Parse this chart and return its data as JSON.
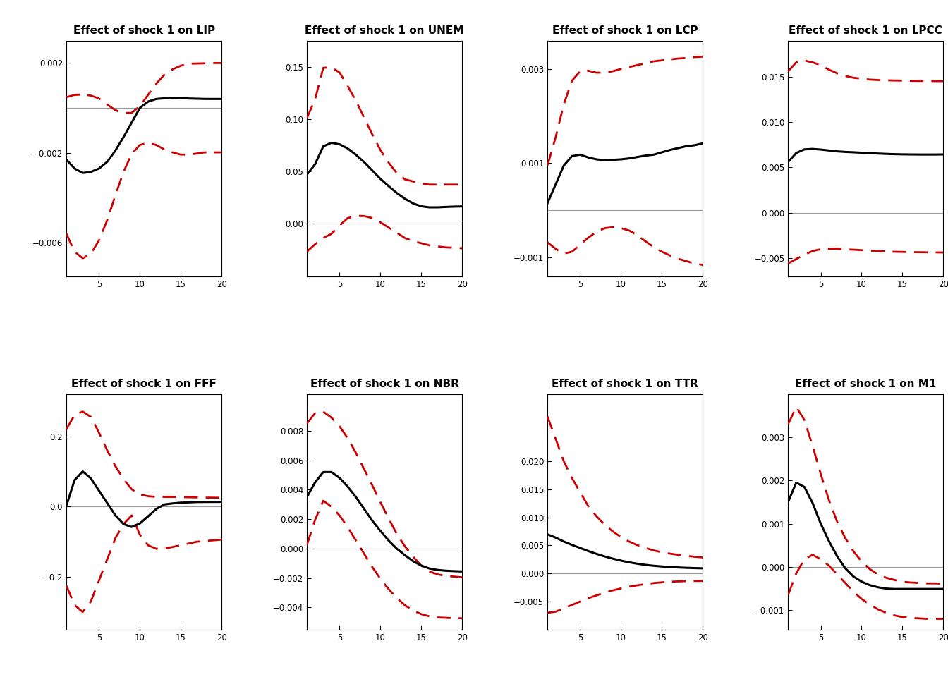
{
  "titles": [
    "Effect of shock 1 on LIP",
    "Effect of shock 1 on UNEM",
    "Effect of shock 1 on LCP",
    "Effect of shock 1 on LPCC",
    "Effect of shock 1 on FFF",
    "Effect of shock 1 on NBR",
    "Effect of shock 1 on TTR",
    "Effect of shock 1 on M1"
  ],
  "x": [
    1,
    2,
    3,
    4,
    5,
    6,
    7,
    8,
    9,
    10,
    11,
    12,
    13,
    14,
    15,
    16,
    17,
    18,
    19,
    20
  ],
  "median": {
    "LIP": [
      -0.0023,
      -0.0027,
      -0.0029,
      -0.00285,
      -0.0027,
      -0.0024,
      -0.0019,
      -0.0013,
      -0.00065,
      0.0,
      0.00028,
      0.0004,
      0.00043,
      0.00045,
      0.00044,
      0.00042,
      0.00041,
      0.0004,
      0.0004,
      0.0004
    ],
    "UNEM": [
      0.047,
      0.057,
      0.074,
      0.0775,
      0.076,
      0.072,
      0.066,
      0.059,
      0.051,
      0.043,
      0.036,
      0.0295,
      0.024,
      0.0195,
      0.0168,
      0.0158,
      0.0158,
      0.0162,
      0.0165,
      0.0167
    ],
    "LCP": [
      0.00015,
      0.00055,
      0.00095,
      0.00115,
      0.00118,
      0.00112,
      0.00108,
      0.00106,
      0.00107,
      0.00108,
      0.0011,
      0.00113,
      0.00116,
      0.00118,
      0.00123,
      0.00128,
      0.00132,
      0.00136,
      0.00138,
      0.00142
    ],
    "LPCC": [
      0.0056,
      0.0066,
      0.007,
      0.00705,
      0.00698,
      0.00688,
      0.00678,
      0.00672,
      0.00668,
      0.00663,
      0.00658,
      0.00654,
      0.0065,
      0.00647,
      0.00645,
      0.00644,
      0.00643,
      0.00643,
      0.00643,
      0.00644
    ],
    "FFF": [
      0.002,
      0.075,
      0.1,
      0.08,
      0.045,
      0.01,
      -0.025,
      -0.05,
      -0.058,
      -0.048,
      -0.028,
      -0.007,
      0.006,
      0.009,
      0.011,
      0.012,
      0.013,
      0.0132,
      0.0133,
      0.0134
    ],
    "NBR": [
      0.0035,
      0.0045,
      0.0052,
      0.0052,
      0.0048,
      0.0042,
      0.0035,
      0.0027,
      0.0019,
      0.0012,
      0.00055,
      0.0,
      -0.00045,
      -0.00085,
      -0.00115,
      -0.00135,
      -0.00145,
      -0.0015,
      -0.00153,
      -0.00155
    ],
    "TTR": [
      0.007,
      0.0064,
      0.0057,
      0.0051,
      0.00455,
      0.004,
      0.0035,
      0.00305,
      0.00265,
      0.0023,
      0.002,
      0.00175,
      0.00154,
      0.00138,
      0.00126,
      0.00116,
      0.00108,
      0.00102,
      0.00097,
      0.00093
    ],
    "M1": [
      0.0015,
      0.00195,
      0.00185,
      0.00148,
      0.001,
      0.0006,
      0.00025,
      -3e-05,
      -0.00022,
      -0.00034,
      -0.00042,
      -0.00047,
      -0.0005,
      -0.00051,
      -0.00051,
      -0.00051,
      -0.00051,
      -0.00051,
      -0.00051,
      -0.00051
    ]
  },
  "upper": {
    "LIP": [
      0.00048,
      0.00058,
      0.0006,
      0.00055,
      0.00042,
      0.00015,
      -0.0001,
      -0.00023,
      -0.00022,
      8e-05,
      0.00058,
      0.00108,
      0.00148,
      0.00172,
      0.00188,
      0.00197,
      0.00198,
      0.00199,
      0.002,
      0.002
    ],
    "UNEM": [
      0.101,
      0.119,
      0.149,
      0.1495,
      0.1445,
      0.1315,
      0.1175,
      0.1015,
      0.0855,
      0.0705,
      0.0585,
      0.0485,
      0.0425,
      0.0405,
      0.0385,
      0.0375,
      0.0375,
      0.0375,
      0.0375,
      0.0375
    ],
    "LCP": [
      0.00095,
      0.00155,
      0.00225,
      0.00275,
      0.00295,
      0.00296,
      0.00292,
      0.00292,
      0.00295,
      0.003,
      0.00304,
      0.00308,
      0.00312,
      0.00316,
      0.00318,
      0.0032,
      0.00322,
      0.00323,
      0.00325,
      0.00326
    ],
    "LPCC": [
      0.0156,
      0.0166,
      0.0168,
      0.0166,
      0.0163,
      0.0158,
      0.0154,
      0.0151,
      0.0149,
      0.0148,
      0.0147,
      0.01465,
      0.01462,
      0.0146,
      0.01458,
      0.01456,
      0.01455,
      0.01454,
      0.01453,
      0.01453
    ],
    "FFF": [
      0.22,
      0.26,
      0.27,
      0.255,
      0.21,
      0.16,
      0.115,
      0.078,
      0.049,
      0.0345,
      0.0295,
      0.0275,
      0.0275,
      0.0275,
      0.027,
      0.0265,
      0.026,
      0.0255,
      0.0252,
      0.0249
    ],
    "NBR": [
      0.0085,
      0.0092,
      0.0093,
      0.0089,
      0.0083,
      0.0075,
      0.0065,
      0.0054,
      0.0043,
      0.00315,
      0.00205,
      0.001,
      0.00015,
      -0.00055,
      -0.00115,
      -0.00155,
      -0.00175,
      -0.00185,
      -0.0019,
      -0.00195
    ],
    "TTR": [
      0.028,
      0.024,
      0.02,
      0.017,
      0.0145,
      0.012,
      0.0102,
      0.0087,
      0.0075,
      0.0065,
      0.0057,
      0.00505,
      0.00455,
      0.00412,
      0.0038,
      0.00355,
      0.00333,
      0.00315,
      0.003,
      0.00287
    ],
    "M1": [
      0.0033,
      0.0037,
      0.0034,
      0.0028,
      0.00215,
      0.00155,
      0.00105,
      0.00067,
      0.00036,
      0.00013,
      -5e-05,
      -0.00017,
      -0.00025,
      -0.0003,
      -0.00034,
      -0.00036,
      -0.00037,
      -0.00038,
      -0.00038,
      -0.00039
    ]
  },
  "lower": {
    "LIP": [
      -0.0056,
      -0.0064,
      -0.0067,
      -0.0065,
      -0.0059,
      -0.005,
      -0.0039,
      -0.00285,
      -0.00205,
      -0.00165,
      -0.00155,
      -0.00165,
      -0.00185,
      -0.00198,
      -0.00208,
      -0.00208,
      -0.00203,
      -0.00198,
      -0.00198,
      -0.00198
    ],
    "UNEM": [
      -0.0265,
      -0.0195,
      -0.0135,
      -0.0095,
      -0.0015,
      0.0055,
      0.0075,
      0.0075,
      0.0055,
      0.0015,
      -0.0035,
      -0.0085,
      -0.0135,
      -0.0165,
      -0.0185,
      -0.0205,
      -0.0215,
      -0.0225,
      -0.0228,
      -0.0232
    ],
    "LCP": [
      -0.00068,
      -0.00082,
      -0.00092,
      -0.00088,
      -0.00073,
      -0.00058,
      -0.00046,
      -0.00038,
      -0.00036,
      -0.00038,
      -0.00043,
      -0.00053,
      -0.00066,
      -0.00078,
      -0.00088,
      -0.00096,
      -0.00103,
      -0.00108,
      -0.00113,
      -0.00116
    ],
    "LPCC": [
      -0.0056,
      -0.0051,
      -0.00462,
      -0.00422,
      -0.00402,
      -0.00397,
      -0.00397,
      -0.00402,
      -0.00407,
      -0.00412,
      -0.00417,
      -0.00422,
      -0.00427,
      -0.0043,
      -0.00432,
      -0.00434,
      -0.00435,
      -0.00436,
      -0.00437,
      -0.00438
    ],
    "FFF": [
      -0.225,
      -0.28,
      -0.3,
      -0.27,
      -0.21,
      -0.15,
      -0.09,
      -0.05,
      -0.025,
      -0.08,
      -0.11,
      -0.12,
      -0.12,
      -0.115,
      -0.11,
      -0.105,
      -0.1,
      -0.098,
      -0.096,
      -0.094
    ],
    "NBR": [
      0.00025,
      0.00195,
      0.00325,
      0.00285,
      0.00225,
      0.00145,
      0.00055,
      -0.00035,
      -0.00125,
      -0.00205,
      -0.00275,
      -0.00335,
      -0.00385,
      -0.0042,
      -0.00445,
      -0.0046,
      -0.00467,
      -0.0047,
      -0.00472,
      -0.00473
    ],
    "TTR": [
      -0.007,
      -0.0068,
      -0.0062,
      -0.0056,
      -0.005,
      -0.0044,
      -0.0039,
      -0.0034,
      -0.003,
      -0.00265,
      -0.00235,
      -0.0021,
      -0.00187,
      -0.0017,
      -0.00157,
      -0.00147,
      -0.0014,
      -0.00135,
      -0.00132,
      -0.0013
    ],
    "M1": [
      -0.00065,
      -0.00015,
      0.00018,
      0.00028,
      0.00018,
      3e-05,
      -0.00017,
      -0.00037,
      -0.00057,
      -0.00074,
      -0.00087,
      -0.00098,
      -0.00106,
      -0.00112,
      -0.00116,
      -0.00118,
      -0.00119,
      -0.0012,
      -0.0012,
      -0.0012
    ]
  },
  "ylims": {
    "LIP": [
      -0.0075,
      0.003
    ],
    "UNEM": [
      -0.05,
      0.175
    ],
    "LCP": [
      -0.0014,
      0.0036
    ],
    "LPCC": [
      -0.007,
      0.019
    ],
    "FFF": [
      -0.35,
      0.32
    ],
    "NBR": [
      -0.0055,
      0.0105
    ],
    "TTR": [
      -0.01,
      0.032
    ],
    "M1": [
      -0.00145,
      0.004
    ]
  },
  "yticks": {
    "LIP": [
      -0.006,
      -0.002,
      0.002
    ],
    "UNEM": [
      0.0,
      0.05,
      0.1,
      0.15
    ],
    "LCP": [
      -0.001,
      0.001,
      0.003
    ],
    "LPCC": [
      -0.005,
      0.0,
      0.005,
      0.01,
      0.015
    ],
    "FFF": [
      -0.2,
      0.0,
      0.2
    ],
    "NBR": [
      -0.004,
      -0.002,
      0.0,
      0.002,
      0.004,
      0.006,
      0.008
    ],
    "TTR": [
      -0.005,
      0.0,
      0.005,
      0.01,
      0.015,
      0.02
    ],
    "M1": [
      -0.001,
      0.0,
      0.001,
      0.002,
      0.003
    ]
  },
  "xticks": [
    5,
    10,
    15,
    20
  ],
  "median_color": "#000000",
  "ci_color": "#cc0000",
  "zero_line_color": "#999999",
  "background_color": "#ffffff",
  "median_lw": 2.2,
  "ci_lw": 2.0,
  "zero_lw": 0.8,
  "title_fontsize": 11,
  "tick_fontsize": 8.5,
  "fig_bg": "#ffffff"
}
